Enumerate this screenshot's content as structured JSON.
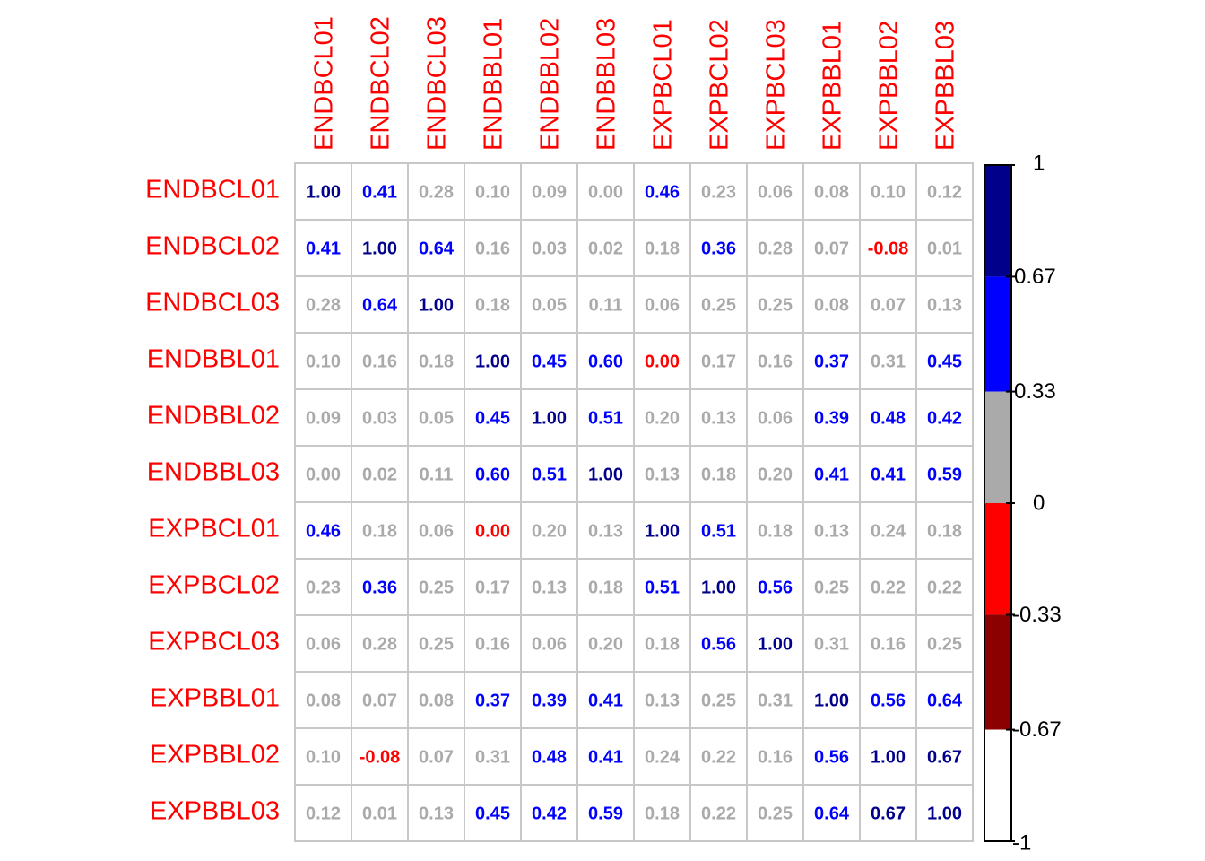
{
  "chart_data": {
    "type": "heatmap",
    "labels": [
      "ENDBCL01",
      "ENDBCL02",
      "ENDBCL03",
      "ENDBBL01",
      "ENDBBL02",
      "ENDBBL03",
      "EXPBCL01",
      "EXPBCL02",
      "EXPBCL03",
      "EXPBBL01",
      "EXPBBL02",
      "EXPBBL03"
    ],
    "matrix": [
      [
        "1.00",
        "0.41",
        "0.28",
        "0.10",
        "0.09",
        "0.00",
        "0.46",
        "0.23",
        "0.06",
        "0.08",
        "0.10",
        "0.12"
      ],
      [
        "0.41",
        "1.00",
        "0.64",
        "0.16",
        "0.03",
        "0.02",
        "0.18",
        "0.36",
        "0.28",
        "0.07",
        "-0.08",
        "0.01"
      ],
      [
        "0.28",
        "0.64",
        "1.00",
        "0.18",
        "0.05",
        "0.11",
        "0.06",
        "0.25",
        "0.25",
        "0.08",
        "0.07",
        "0.13"
      ],
      [
        "0.10",
        "0.16",
        "0.18",
        "1.00",
        "0.45",
        "0.60",
        "0.00",
        "0.17",
        "0.16",
        "0.37",
        "0.31",
        "0.45"
      ],
      [
        "0.09",
        "0.03",
        "0.05",
        "0.45",
        "1.00",
        "0.51",
        "0.20",
        "0.13",
        "0.06",
        "0.39",
        "0.48",
        "0.42"
      ],
      [
        "0.00",
        "0.02",
        "0.11",
        "0.60",
        "0.51",
        "1.00",
        "0.13",
        "0.18",
        "0.20",
        "0.41",
        "0.41",
        "0.59"
      ],
      [
        "0.46",
        "0.18",
        "0.06",
        "0.00",
        "0.20",
        "0.13",
        "1.00",
        "0.51",
        "0.18",
        "0.13",
        "0.24",
        "0.18"
      ],
      [
        "0.23",
        "0.36",
        "0.25",
        "0.17",
        "0.13",
        "0.18",
        "0.51",
        "1.00",
        "0.56",
        "0.25",
        "0.22",
        "0.22"
      ],
      [
        "0.06",
        "0.28",
        "0.25",
        "0.16",
        "0.06",
        "0.20",
        "0.18",
        "0.56",
        "1.00",
        "0.31",
        "0.16",
        "0.25"
      ],
      [
        "0.08",
        "0.07",
        "0.08",
        "0.37",
        "0.39",
        "0.41",
        "0.13",
        "0.25",
        "0.31",
        "1.00",
        "0.56",
        "0.64"
      ],
      [
        "0.10",
        "-0.08",
        "0.07",
        "0.31",
        "0.48",
        "0.41",
        "0.24",
        "0.22",
        "0.16",
        "0.56",
        "1.00",
        "0.67"
      ],
      [
        "0.12",
        "0.01",
        "0.13",
        "0.45",
        "0.42",
        "0.59",
        "0.18",
        "0.22",
        "0.25",
        "0.64",
        "0.67",
        "1.00"
      ]
    ],
    "text_color_override": {
      "3,6": "#ff0000",
      "6,3": "#ff0000"
    },
    "colorbar": {
      "ticks": [
        "1",
        "0.67",
        "0.33",
        "0",
        "-0.33",
        "-0.67",
        "-1"
      ],
      "bins": [
        {
          "from": 0.67,
          "to": 1.0,
          "color": "#00008b"
        },
        {
          "from": 0.33,
          "to": 0.67,
          "color": "#0000ff"
        },
        {
          "from": 0.0,
          "to": 0.33,
          "color": "#aaaaaa"
        },
        {
          "from": -0.33,
          "to": 0.0,
          "color": "#ff0000"
        },
        {
          "from": -0.67,
          "to": -0.33,
          "color": "#8b0000"
        },
        {
          "from": -1.0,
          "to": -0.67,
          "color": "#ffffff"
        }
      ]
    },
    "label_color": "#ff0000",
    "grid_color": "#c8c8c8"
  }
}
